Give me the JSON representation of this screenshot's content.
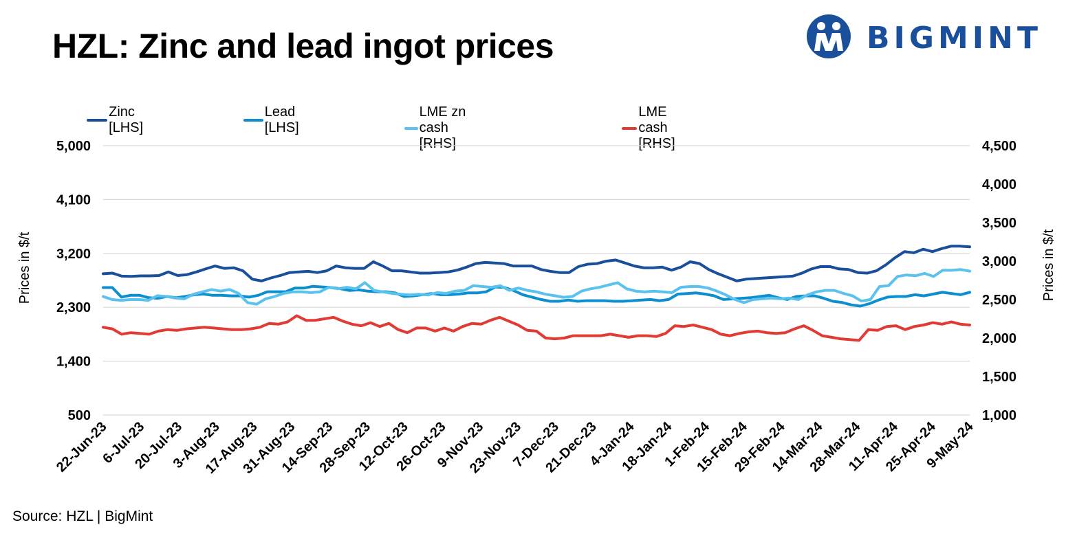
{
  "title": "HZL: Zinc and lead ingot prices",
  "brand": {
    "name": "BIGMINT",
    "logo_icon": "bigmint-people-icon",
    "color": "#1a4f9c"
  },
  "source": "Source: HZL | BigMint",
  "chart_data": {
    "type": "line",
    "title": "HZL: Zinc and lead ingot prices",
    "xlabel": "",
    "ylabel_left": "Prices in $/t",
    "ylabel_right": "Prices in $/t",
    "ylim_left": [
      500,
      5000
    ],
    "ylim_right": [
      1000,
      4500
    ],
    "yticks_left": [
      "5,000",
      "4,100",
      "3,200",
      "2,300",
      "1,400",
      "500"
    ],
    "yticks_left_values": [
      5000,
      4100,
      3200,
      2300,
      1400,
      500
    ],
    "yticks_right": [
      "4,500",
      "4,000",
      "3,500",
      "3,000",
      "2,500",
      "2,000",
      "1,500",
      "1,000"
    ],
    "yticks_right_values": [
      4500,
      4000,
      3500,
      3000,
      2500,
      2000,
      1500,
      1000
    ],
    "x_tick_labels": [
      "22-Jun-23",
      "6-Jul-23",
      "20-Jul-23",
      "3-Aug-23",
      "17-Aug-23",
      "31-Aug-23",
      "14-Sep-23",
      "28-Sep-23",
      "12-Oct-23",
      "26-Oct-23",
      "9-Nov-23",
      "23-Nov-23",
      "7-Dec-23",
      "21-Dec-23",
      "4-Jan-24",
      "18-Jan-24",
      "1-Feb-24",
      "15-Feb-24",
      "29-Feb-24",
      "14-Mar-24",
      "28-Mar-24",
      "11-Apr-24",
      "25-Apr-24",
      "9-May-24"
    ],
    "grid": true,
    "legend_position": "top",
    "series": [
      {
        "name": "Zinc [LHS]",
        "axis": "left",
        "color": "#1a4f9c",
        "values": [
          2860,
          2870,
          2820,
          2815,
          2825,
          2825,
          2830,
          2890,
          2830,
          2845,
          2890,
          2940,
          2990,
          2950,
          2960,
          2910,
          2770,
          2740,
          2790,
          2830,
          2880,
          2890,
          2900,
          2880,
          2910,
          2990,
          2960,
          2950,
          2950,
          3060,
          2990,
          2910,
          2910,
          2890,
          2870,
          2870,
          2880,
          2890,
          2920,
          2970,
          3030,
          3050,
          3040,
          3030,
          2990,
          2990,
          2990,
          2930,
          2900,
          2880,
          2880,
          2980,
          3020,
          3030,
          3070,
          3090,
          3040,
          2990,
          2960,
          2960,
          2970,
          2920,
          2970,
          3060,
          3030,
          2930,
          2860,
          2800,
          2740,
          2770,
          2780,
          2790,
          2800,
          2810,
          2820,
          2870,
          2940,
          2980,
          2980,
          2940,
          2930,
          2880,
          2870,
          2910,
          3010,
          3130,
          3230,
          3210,
          3270,
          3230,
          3280,
          3320,
          3320,
          3310
        ]
      },
      {
        "name": "Lead [LHS]",
        "axis": "left",
        "color": "#0c8fcf",
        "values": [
          2630,
          2630,
          2470,
          2500,
          2500,
          2460,
          2450,
          2480,
          2460,
          2480,
          2510,
          2520,
          2500,
          2500,
          2490,
          2490,
          2470,
          2500,
          2560,
          2560,
          2560,
          2620,
          2620,
          2650,
          2640,
          2630,
          2610,
          2580,
          2590,
          2570,
          2560,
          2560,
          2540,
          2480,
          2490,
          2510,
          2530,
          2510,
          2510,
          2520,
          2540,
          2540,
          2560,
          2640,
          2630,
          2580,
          2510,
          2470,
          2430,
          2400,
          2400,
          2420,
          2400,
          2410,
          2410,
          2410,
          2400,
          2400,
          2410,
          2420,
          2430,
          2410,
          2430,
          2520,
          2530,
          2540,
          2520,
          2490,
          2430,
          2440,
          2450,
          2460,
          2480,
          2500,
          2460,
          2430,
          2480,
          2490,
          2490,
          2450,
          2400,
          2380,
          2340,
          2320,
          2360,
          2420,
          2470,
          2480,
          2480,
          2510,
          2490,
          2520,
          2550,
          2530,
          2510,
          2550
        ]
      },
      {
        "name": "LME zn cash [RHS]",
        "axis": "right",
        "color": "#5bc2ed",
        "values": [
          2540,
          2500,
          2490,
          2500,
          2500,
          2490,
          2550,
          2540,
          2520,
          2510,
          2570,
          2600,
          2630,
          2610,
          2630,
          2580,
          2460,
          2440,
          2510,
          2540,
          2580,
          2600,
          2600,
          2590,
          2600,
          2660,
          2640,
          2660,
          2640,
          2720,
          2620,
          2600,
          2580,
          2570,
          2560,
          2570,
          2560,
          2590,
          2580,
          2610,
          2620,
          2680,
          2670,
          2660,
          2680,
          2620,
          2650,
          2620,
          2600,
          2570,
          2550,
          2530,
          2540,
          2610,
          2640,
          2660,
          2690,
          2720,
          2640,
          2610,
          2600,
          2610,
          2600,
          2590,
          2660,
          2670,
          2670,
          2650,
          2610,
          2560,
          2500,
          2460,
          2500,
          2510,
          2520,
          2510,
          2520,
          2500,
          2560,
          2600,
          2620,
          2620,
          2580,
          2550,
          2480,
          2500,
          2670,
          2680,
          2800,
          2820,
          2810,
          2840,
          2800,
          2880,
          2880,
          2890,
          2870
        ]
      },
      {
        "name": "LME cash [RHS]",
        "axis": "right",
        "color": "#e23b36",
        "values": [
          2140,
          2120,
          2050,
          2070,
          2060,
          2050,
          2090,
          2110,
          2100,
          2120,
          2130,
          2140,
          2130,
          2120,
          2110,
          2110,
          2120,
          2140,
          2190,
          2180,
          2210,
          2290,
          2230,
          2230,
          2250,
          2270,
          2220,
          2180,
          2160,
          2200,
          2150,
          2190,
          2110,
          2070,
          2130,
          2130,
          2090,
          2130,
          2090,
          2150,
          2190,
          2180,
          2230,
          2270,
          2220,
          2170,
          2100,
          2090,
          2000,
          1990,
          2000,
          2030,
          2030,
          2030,
          2030,
          2050,
          2030,
          2010,
          2030,
          2030,
          2020,
          2060,
          2160,
          2150,
          2170,
          2140,
          2110,
          2050,
          2030,
          2060,
          2080,
          2090,
          2070,
          2060,
          2070,
          2120,
          2160,
          2100,
          2030,
          2010,
          1990,
          1980,
          1970,
          2110,
          2100,
          2150,
          2160,
          2110,
          2150,
          2170,
          2200,
          2180,
          2210,
          2180,
          2170
        ]
      }
    ]
  }
}
